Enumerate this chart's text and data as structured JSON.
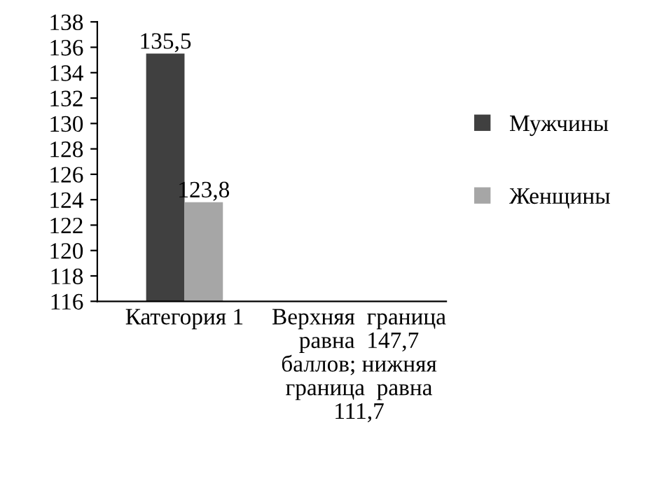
{
  "chart_data": {
    "type": "bar",
    "categories": [
      "Категория 1",
      "Верхняя  граница\nравна  147,7\nбаллов; нижняя\nграница  равна\n111,7"
    ],
    "series": [
      {
        "name": "Мужчины",
        "color": "#404040",
        "values": [
          135.5,
          null
        ],
        "value_labels": [
          "135,5",
          null
        ]
      },
      {
        "name": "Женщины",
        "color": "#a6a6a6",
        "values": [
          123.8,
          null
        ],
        "value_labels": [
          "123,8",
          null
        ]
      }
    ],
    "ylim": [
      116,
      138
    ],
    "yticks": [
      116,
      118,
      120,
      122,
      124,
      126,
      128,
      130,
      132,
      134,
      136,
      138
    ],
    "grid": false,
    "legend": "right"
  }
}
